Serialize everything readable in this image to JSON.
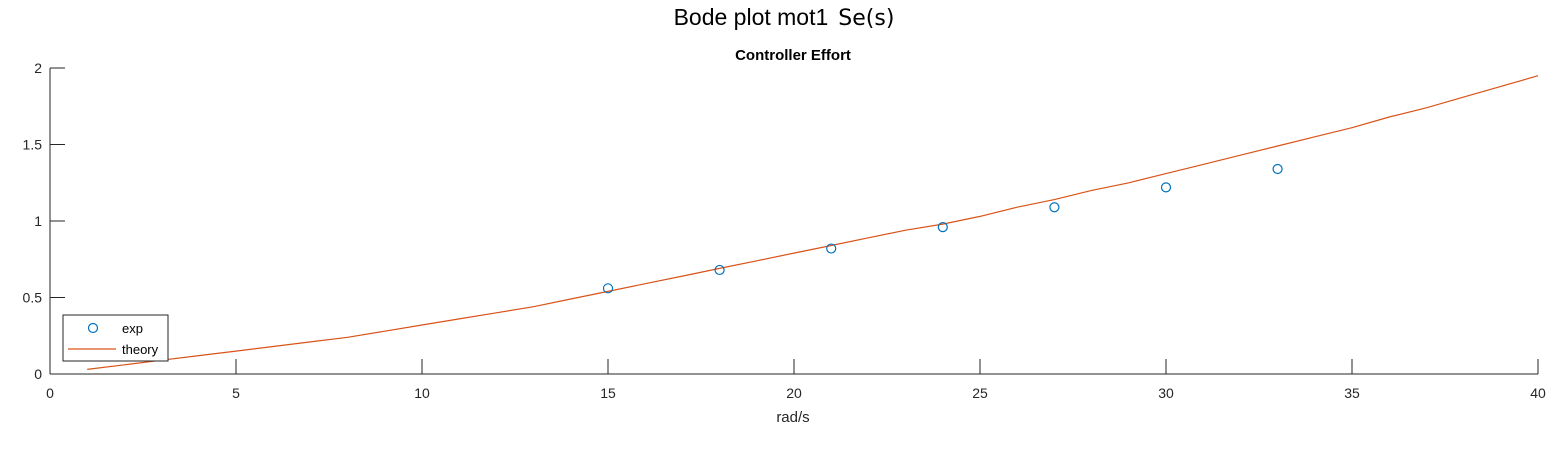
{
  "figure": {
    "suptitle": "Bode plot mot1",
    "suptitle_function": "Se(s)"
  },
  "chart_data": {
    "type": "line",
    "title": "Controller Effort",
    "xlabel": "rad/s",
    "ylabel": "",
    "xlim": [
      0,
      40
    ],
    "ylim": [
      0,
      2
    ],
    "xticks": [
      0,
      5,
      10,
      15,
      20,
      25,
      30,
      35,
      40
    ],
    "yticks": [
      0,
      0.5,
      1,
      1.5,
      2
    ],
    "yticklabels": [
      "0",
      "0.5",
      "1",
      "1.5",
      "2"
    ],
    "grid": false,
    "legend_position": "bottom-left",
    "series": [
      {
        "name": "exp",
        "kind": "scatter",
        "marker": "circle",
        "color": "#0072BD",
        "x": [
          15,
          18,
          21,
          24,
          27,
          30,
          33
        ],
        "y": [
          0.56,
          0.68,
          0.82,
          0.96,
          1.09,
          1.22,
          1.34
        ]
      },
      {
        "name": "theory",
        "kind": "line",
        "color": "#D95319",
        "x": [
          1,
          2,
          3,
          4,
          5,
          6,
          7,
          8,
          9,
          10,
          11,
          12,
          13,
          14,
          15,
          16,
          17,
          18,
          19,
          20,
          21,
          22,
          23,
          24,
          25,
          26,
          27,
          28,
          29,
          30,
          31,
          32,
          33,
          34,
          35,
          36,
          37,
          38,
          39,
          40
        ],
        "y": [
          0.03,
          0.06,
          0.09,
          0.12,
          0.15,
          0.18,
          0.21,
          0.24,
          0.28,
          0.32,
          0.36,
          0.4,
          0.44,
          0.49,
          0.54,
          0.59,
          0.64,
          0.69,
          0.74,
          0.79,
          0.84,
          0.89,
          0.94,
          0.98,
          1.03,
          1.09,
          1.14,
          1.2,
          1.25,
          1.31,
          1.37,
          1.43,
          1.49,
          1.55,
          1.61,
          1.68,
          1.74,
          1.81,
          1.88,
          1.95
        ]
      }
    ]
  }
}
